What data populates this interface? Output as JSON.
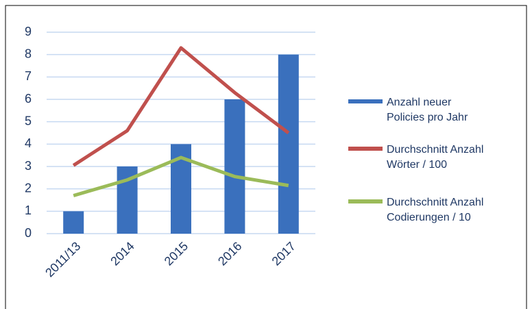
{
  "chart_data": {
    "type": "bar",
    "categories": [
      "2011/13",
      "2014",
      "2015",
      "2016",
      "2017"
    ],
    "series": [
      {
        "name": "Anzahl neuer Policies pro Jahr",
        "type": "bar",
        "color": "#3a70bd",
        "values": [
          1,
          3,
          4,
          6,
          8
        ]
      },
      {
        "name": "Durchschnitt Anzahl Wörter / 100",
        "type": "line",
        "color": "#c0504d",
        "values": [
          3.05,
          4.6,
          8.3,
          6.3,
          4.5
        ]
      },
      {
        "name": "Durchschnitt Anzahl Codierungen / 10",
        "type": "line",
        "color": "#9bbb59",
        "values": [
          1.7,
          2.4,
          3.4,
          2.55,
          2.15
        ]
      }
    ],
    "ylim": [
      0,
      9
    ],
    "yticks": [
      0,
      1,
      2,
      3,
      4,
      5,
      6,
      7,
      8,
      9
    ],
    "grid": true,
    "legend": "right"
  }
}
